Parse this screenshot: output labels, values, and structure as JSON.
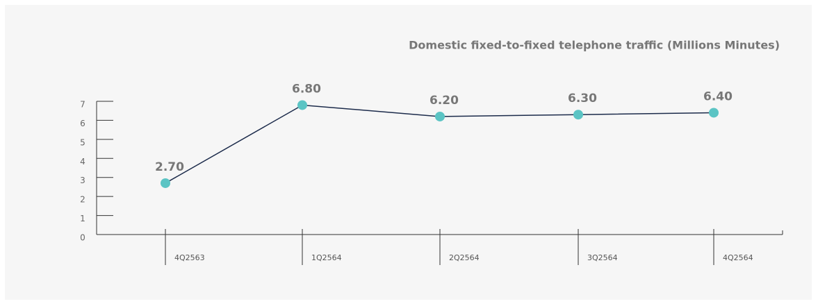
{
  "chart_data": {
    "type": "line",
    "title": "Domestic fixed-to-fixed telephone traffic (Millions Minutes)",
    "categories": [
      "4Q2563",
      "1Q2564",
      "2Q2564",
      "3Q2564",
      "4Q2564"
    ],
    "series": [
      {
        "name": "Domestic fixed-to-fixed telephone traffic",
        "color": "#1b2a4a",
        "marker_color": "#5bc4c4",
        "values": [
          2.7,
          6.8,
          6.2,
          6.3,
          6.4
        ],
        "value_labels": [
          "2.70",
          "6.80",
          "6.20",
          "6.30",
          "6.40"
        ]
      }
    ],
    "ylim": [
      0,
      7
    ],
    "yticks": [
      0,
      1,
      2,
      3,
      4,
      5,
      6,
      7
    ]
  }
}
